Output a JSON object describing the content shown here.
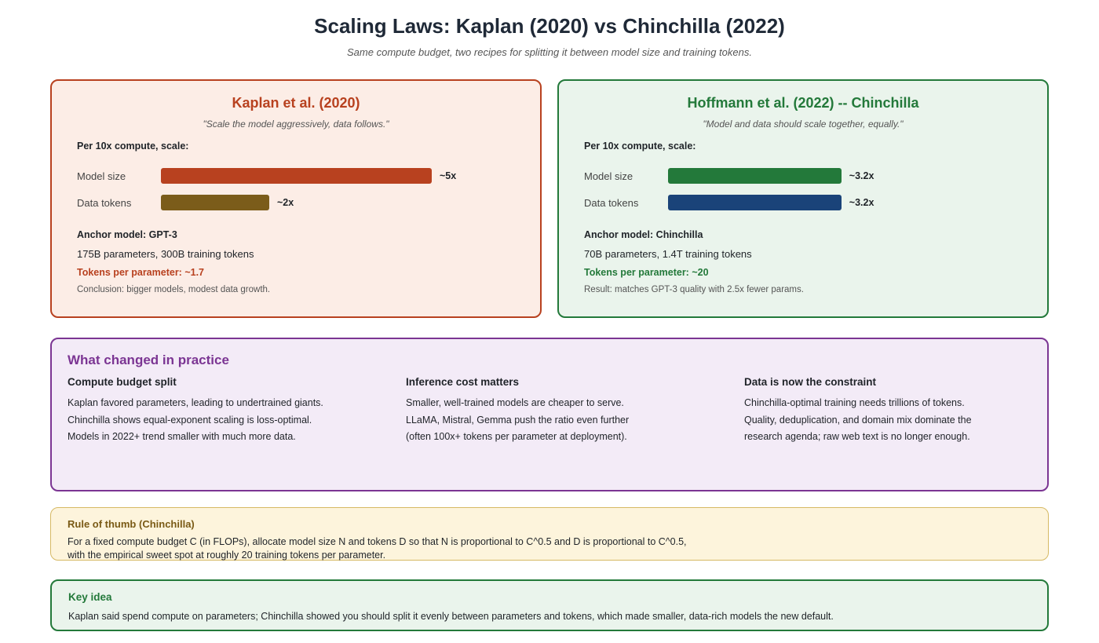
{
  "title": "Scaling Laws: Kaplan (2020) vs Chinchilla (2022)",
  "subtitle": "Same compute budget, two recipes for splitting it between model size and training tokens.",
  "colors": {
    "kaplan_accent": "#b8411f",
    "data_bar_kaplan": "#7b5c1a",
    "chinchilla_accent": "#23793a",
    "data_bar_chinchilla": "#1a4379",
    "practice_accent": "#7b3593",
    "thumb_accent": "#7a5a15"
  },
  "kaplan": {
    "title": "Kaplan et al. (2020)",
    "quote": "\"Scale the model aggressively, data follows.\"",
    "per_label": "Per 10x compute, scale:",
    "rows": [
      {
        "label": "Model size",
        "value_label": "~5x",
        "value": 5
      },
      {
        "label": "Data tokens",
        "value_label": "~2x",
        "value": 2
      }
    ],
    "anchor": "Anchor model: GPT-3",
    "params": "175B parameters, 300B training tokens",
    "tokens_per_param": "Tokens per parameter: ~1.7",
    "conclusion": "Conclusion: bigger models, modest data growth."
  },
  "chinchilla": {
    "title": "Hoffmann et al. (2022) -- Chinchilla",
    "quote": "\"Model and data should scale together, equally.\"",
    "per_label": "Per 10x compute, scale:",
    "rows": [
      {
        "label": "Model size",
        "value_label": "~3.2x",
        "value": 3.2
      },
      {
        "label": "Data tokens",
        "value_label": "~3.2x",
        "value": 3.2
      }
    ],
    "anchor": "Anchor model: Chinchilla",
    "params": "70B parameters, 1.4T training tokens",
    "tokens_per_param": "Tokens per parameter: ~20",
    "conclusion": "Result: matches GPT-3 quality with 2.5x fewer params."
  },
  "practice": {
    "title": "What changed in practice",
    "columns": [
      {
        "heading": "Compute budget split",
        "lines": [
          "Kaplan favored parameters, leading to undertrained giants.",
          "Chinchilla shows equal-exponent scaling is loss-optimal.",
          "Models in 2022+ trend smaller with much more data."
        ]
      },
      {
        "heading": "Inference cost matters",
        "lines": [
          "Smaller, well-trained models are cheaper to serve.",
          "LLaMA, Mistral, Gemma push the ratio even further",
          "(often 100x+ tokens per parameter at deployment)."
        ]
      },
      {
        "heading": "Data is now the constraint",
        "lines": [
          "Chinchilla-optimal training needs trillions of tokens.",
          "Quality, deduplication, and domain mix dominate the",
          "research agenda; raw web text is no longer enough."
        ]
      }
    ]
  },
  "rule": {
    "title": "Rule of thumb (Chinchilla)",
    "lines": [
      "For a fixed compute budget C (in FLOPs), allocate model size N and tokens D so that N is proportional to C^0.5 and D is proportional to C^0.5,",
      "with the empirical sweet spot at roughly 20 training tokens per parameter."
    ]
  },
  "key": {
    "title": "Key idea",
    "text": "Kaplan said spend compute on parameters; Chinchilla showed you should split it evenly between parameters and tokens, which made smaller, data-rich models the new default."
  }
}
